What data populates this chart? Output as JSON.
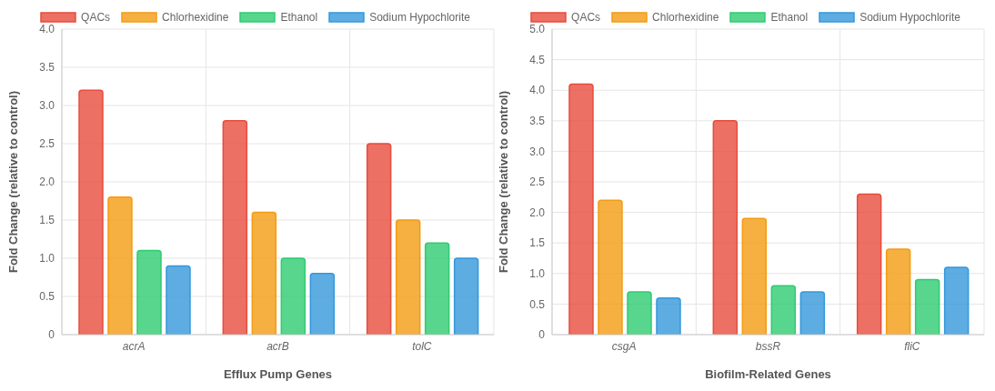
{
  "chart_data": [
    {
      "type": "bar",
      "xlabel": "Efflux Pump Genes",
      "ylabel": "Fold Change (relative to control)",
      "categories": [
        "acrA",
        "acrB",
        "tolC"
      ],
      "series": [
        {
          "name": "QACs",
          "color": "#e74c3c",
          "values": [
            3.2,
            2.8,
            2.5
          ]
        },
        {
          "name": "Chlorhexidine",
          "color": "#f39c12",
          "values": [
            1.8,
            1.6,
            1.5
          ]
        },
        {
          "name": "Ethanol",
          "color": "#2ecc71",
          "values": [
            1.1,
            1.0,
            1.2
          ]
        },
        {
          "name": "Sodium Hypochlorite",
          "color": "#3498db",
          "values": [
            0.9,
            0.8,
            1.0
          ]
        }
      ],
      "ylim": [
        0,
        4
      ],
      "yticks": [
        0,
        0.5,
        {
          "value": 1,
          "label": "1.0"
        },
        1.5,
        {
          "value": 2,
          "label": "2.0"
        },
        2.5,
        {
          "value": 3,
          "label": "3.0"
        },
        3.5,
        {
          "value": 4,
          "label": "4.0"
        }
      ],
      "grid": true,
      "legend": "top"
    },
    {
      "type": "bar",
      "xlabel": "Biofilm-Related Genes",
      "ylabel": "Fold Change (relative to control)",
      "categories": [
        "csgA",
        "bssR",
        "fliC"
      ],
      "series": [
        {
          "name": "QACs",
          "color": "#e74c3c",
          "values": [
            4.1,
            3.5,
            2.3
          ]
        },
        {
          "name": "Chlorhexidine",
          "color": "#f39c12",
          "values": [
            2.2,
            1.9,
            1.4
          ]
        },
        {
          "name": "Ethanol",
          "color": "#2ecc71",
          "values": [
            0.7,
            0.8,
            0.9
          ]
        },
        {
          "name": "Sodium Hypochlorite",
          "color": "#3498db",
          "values": [
            0.6,
            0.7,
            1.1
          ]
        }
      ],
      "ylim": [
        0,
        5
      ],
      "yticks": [
        0,
        0.5,
        {
          "value": 1,
          "label": "1.0"
        },
        1.5,
        {
          "value": 2,
          "label": "2.0"
        },
        2.5,
        {
          "value": 3,
          "label": "3.0"
        },
        3.5,
        {
          "value": 4,
          "label": "4.0"
        },
        4.5,
        {
          "value": 5,
          "label": "5.0"
        }
      ],
      "grid": true,
      "legend": "top"
    }
  ]
}
